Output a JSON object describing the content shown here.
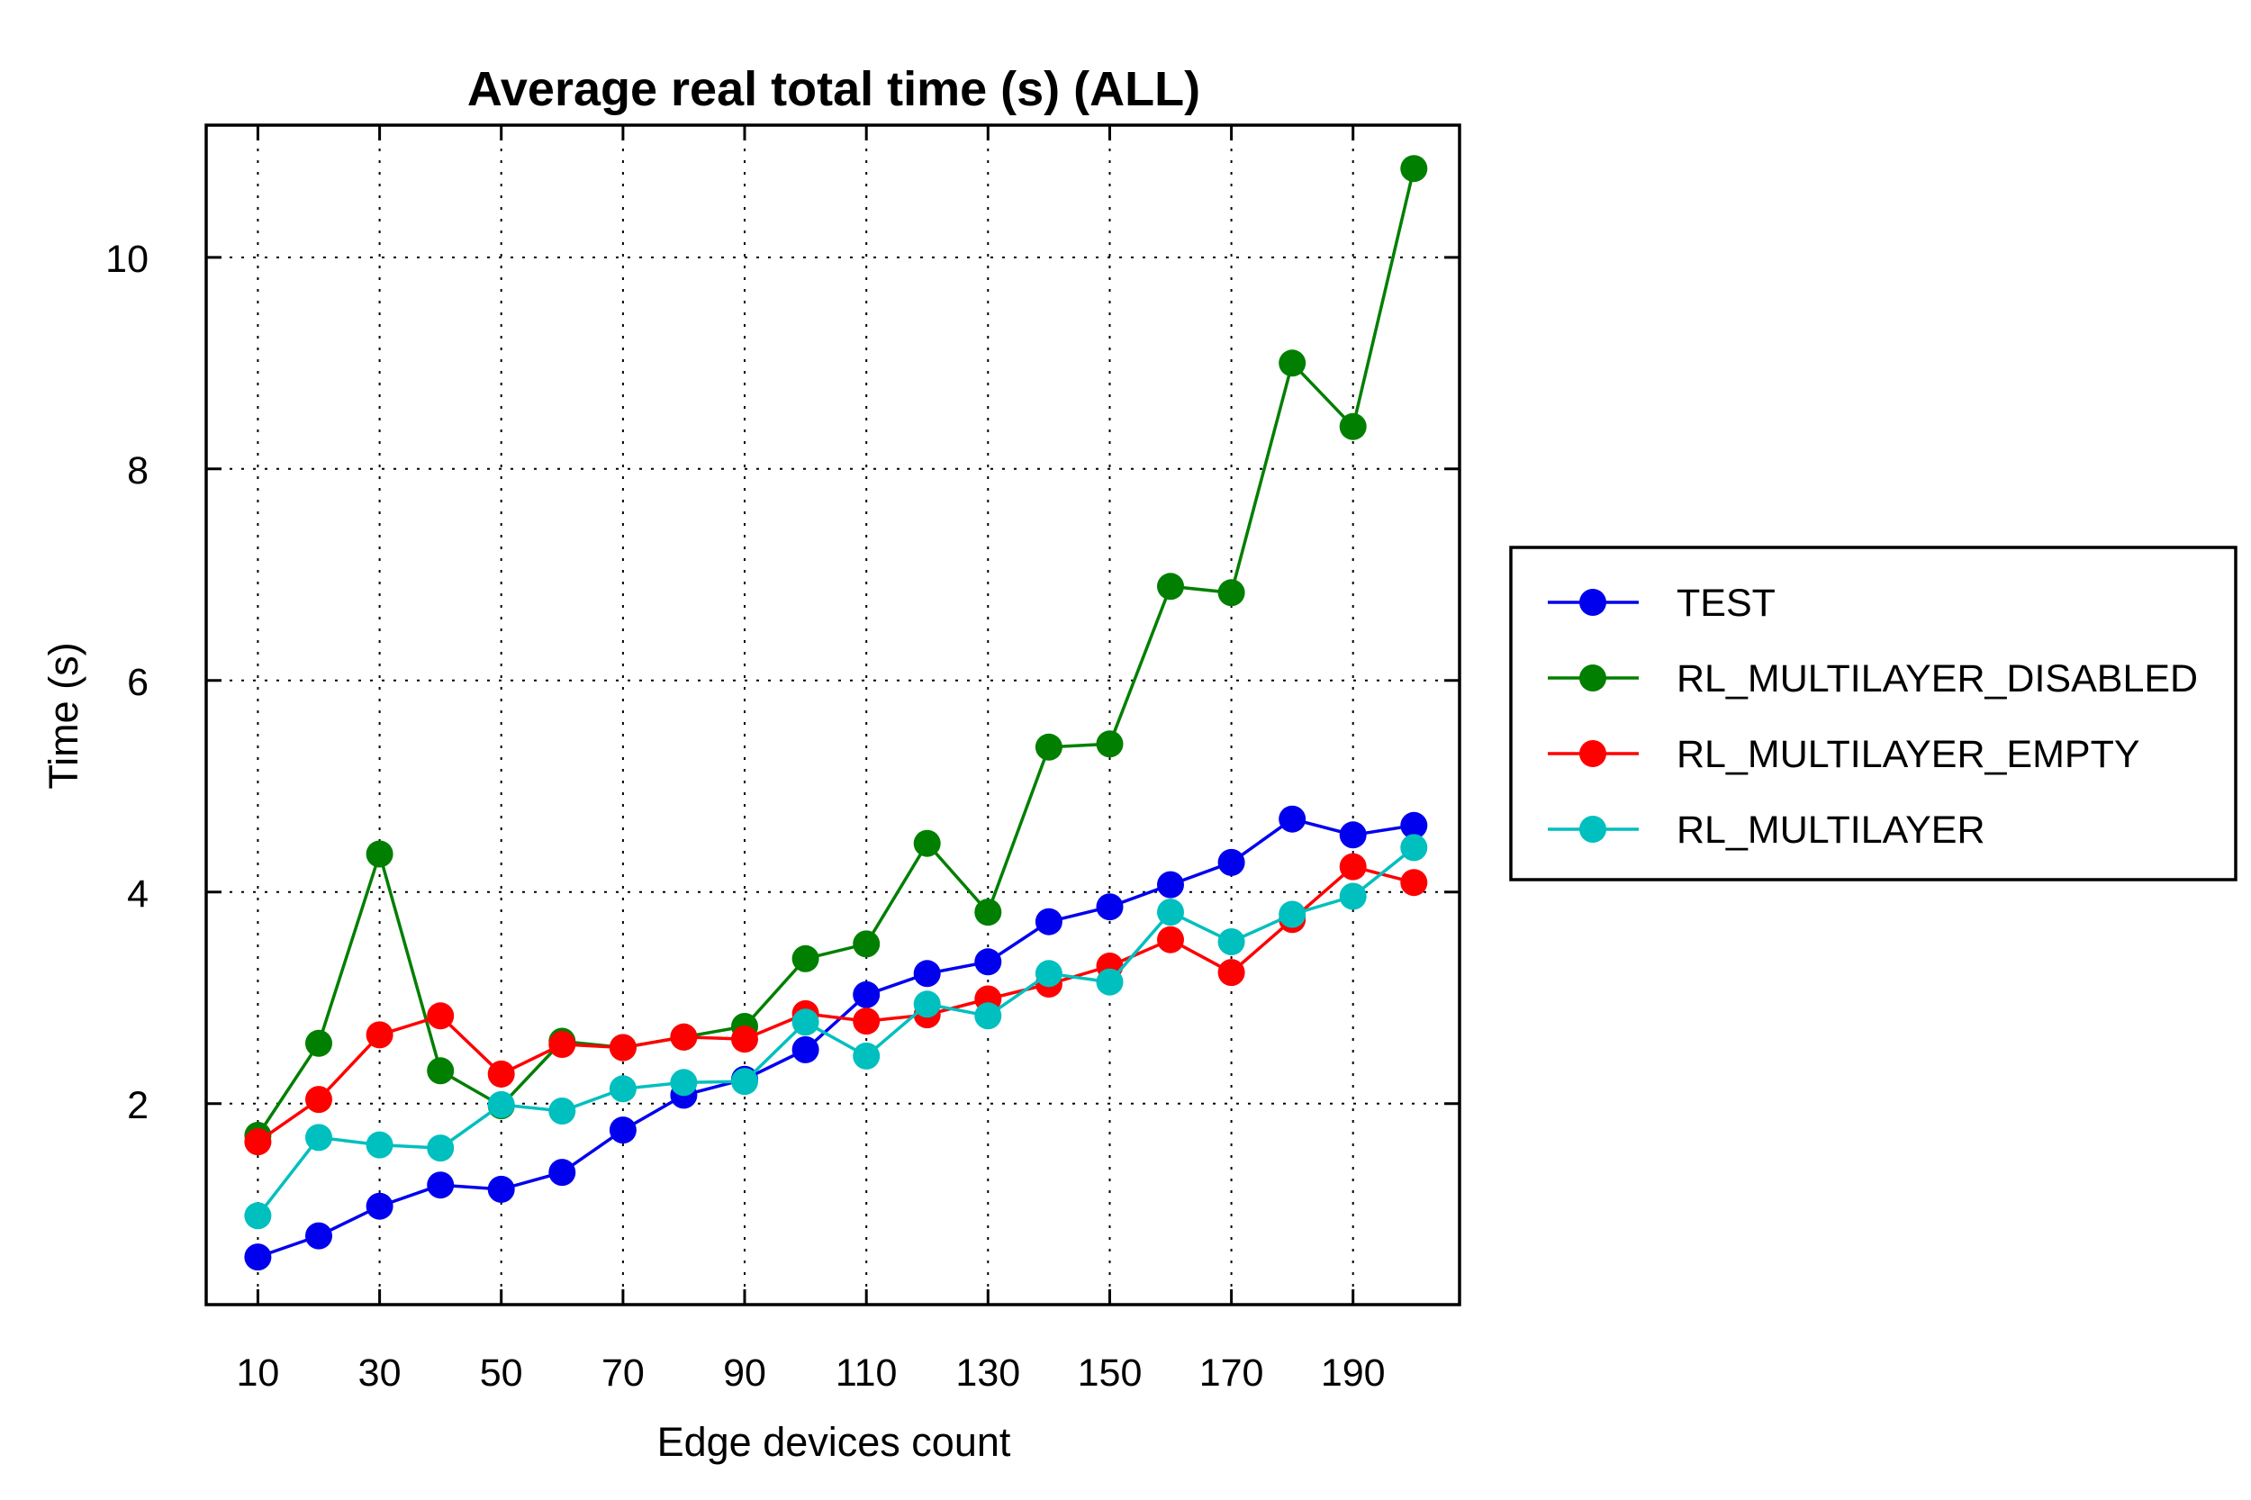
{
  "chart_data": {
    "type": "line",
    "title": "Average real total time (s) (ALL)",
    "xlabel": "Edge devices count",
    "ylabel": "Time (s)",
    "xlim": [
      1.5,
      207.5
    ],
    "ylim": [
      0.1,
      11.25
    ],
    "x_ticks": [
      10,
      30,
      50,
      70,
      90,
      110,
      130,
      150,
      170,
      190
    ],
    "x_grid": [
      10,
      30,
      50,
      70,
      90,
      110,
      130,
      150,
      170,
      190
    ],
    "y_ticks": [
      2,
      4,
      6,
      8,
      10
    ],
    "grid": true,
    "legend_position": "right",
    "x": [
      10,
      20,
      30,
      40,
      50,
      60,
      70,
      80,
      90,
      100,
      110,
      120,
      130,
      140,
      150,
      160,
      170,
      180,
      190,
      200
    ],
    "series": [
      {
        "name": "TEST",
        "color": "#0000ee",
        "values": [
          0.55,
          0.75,
          1.03,
          1.23,
          1.19,
          1.35,
          1.75,
          2.08,
          2.23,
          2.51,
          3.03,
          3.23,
          3.34,
          3.72,
          3.86,
          4.07,
          4.28,
          4.69,
          4.54,
          4.63
        ]
      },
      {
        "name": "RL_MULTILAYER_DISABLED",
        "color": "#007f00",
        "values": [
          1.7,
          2.57,
          4.36,
          2.31,
          1.98,
          2.59,
          2.53,
          2.63,
          2.73,
          3.37,
          3.51,
          4.46,
          3.81,
          5.37,
          5.4,
          6.89,
          6.83,
          9.0,
          8.4,
          10.84
        ]
      },
      {
        "name": "RL_MULTILAYER_EMPTY",
        "color": "#ff0000",
        "values": [
          1.64,
          2.04,
          2.65,
          2.83,
          2.28,
          2.56,
          2.53,
          2.63,
          2.61,
          2.85,
          2.78,
          2.84,
          2.99,
          3.13,
          3.3,
          3.55,
          3.24,
          3.74,
          4.24,
          4.09
        ]
      },
      {
        "name": "RL_MULTILAYER",
        "color": "#00bfbf",
        "values": [
          0.94,
          1.68,
          1.61,
          1.58,
          1.99,
          1.93,
          2.14,
          2.2,
          2.21,
          2.77,
          2.45,
          2.94,
          2.83,
          3.23,
          3.15,
          3.81,
          3.53,
          3.79,
          3.96,
          4.42
        ]
      }
    ]
  }
}
